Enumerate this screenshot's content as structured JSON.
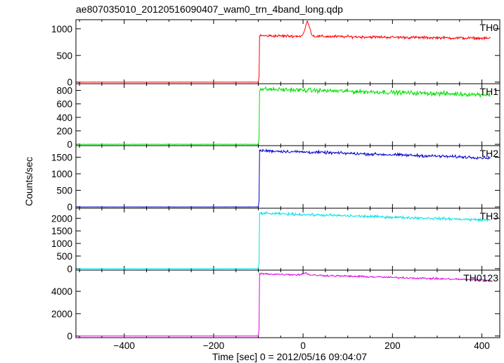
{
  "chart_data": {
    "type": "line",
    "title": "ae807035010_20120516090407_wam0_trn_4band_long.qdp",
    "xlabel": "Time [sec] 0 = 2012/05/16 09:04:07",
    "ylabel": "Counts/sec",
    "xlim": [
      -508,
      440
    ],
    "x_ticks": [
      -400,
      -200,
      0,
      200,
      400
    ],
    "x_tick_labels": [
      "−400",
      "−200",
      "0",
      "200",
      "400"
    ],
    "grid": false,
    "onset_time": -98,
    "panels": [
      {
        "name": "TH0",
        "color": "#ff0000",
        "ylim": [
          -30,
          1170
        ],
        "y_ticks": [
          0,
          500,
          1000
        ],
        "y_tick_labels": [
          "0",
          "500",
          "1000"
        ],
        "pre_level": 0,
        "post_start": 870,
        "post_end": 820,
        "noise": 22,
        "peak": {
          "t": 10,
          "height": 270,
          "width": 7
        }
      },
      {
        "name": "TH1",
        "color": "#00e000",
        "ylim": [
          -20,
          900
        ],
        "y_ticks": [
          0,
          200,
          400,
          600,
          800
        ],
        "y_tick_labels": [
          "0",
          "200",
          "400",
          "600",
          "800"
        ],
        "pre_level": 0,
        "post_start": 820,
        "post_end": 735,
        "noise": 28
      },
      {
        "name": "TH2",
        "color": "#0000cc",
        "ylim": [
          -40,
          1850
        ],
        "y_ticks": [
          0,
          500,
          1000,
          1500
        ],
        "y_tick_labels": [
          "0",
          "500",
          "1000",
          "1500"
        ],
        "pre_level": 0,
        "post_start": 1700,
        "post_end": 1480,
        "noise": 38
      },
      {
        "name": "TH3",
        "color": "#00e0e8",
        "ylim": [
          -60,
          2400
        ],
        "y_ticks": [
          0,
          500,
          1000,
          1500,
          2000
        ],
        "y_tick_labels": [
          "0",
          "500",
          "1000",
          "1500",
          "2000"
        ],
        "pre_level": 0,
        "post_start": 2200,
        "post_end": 1930,
        "noise": 45
      },
      {
        "name": "TH0123",
        "color": "#e000e0",
        "ylim": [
          -150,
          5900
        ],
        "y_ticks": [
          0,
          2000,
          4000
        ],
        "y_tick_labels": [
          "0",
          "2000",
          "4000"
        ],
        "pre_level": 0,
        "post_start": 5580,
        "post_end": 5000,
        "noise": 70,
        "peak": {
          "t": 5,
          "height": 180,
          "width": 8
        }
      }
    ]
  }
}
